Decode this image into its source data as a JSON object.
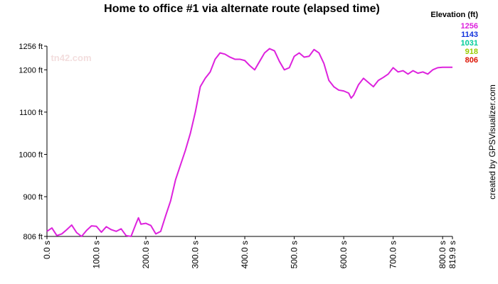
{
  "chart_data": {
    "type": "line",
    "title": "Home to office #1 via alternate route (elapsed time)",
    "watermark": "tn42.com",
    "credit": "created by GPSVisualizer.com",
    "x": [
      0,
      10,
      20,
      30,
      40,
      50,
      60,
      70,
      80,
      90,
      100,
      110,
      120,
      130,
      140,
      150,
      160,
      170,
      180,
      185,
      190,
      200,
      210,
      220,
      230,
      240,
      250,
      260,
      270,
      280,
      290,
      300,
      310,
      320,
      330,
      340,
      350,
      360,
      370,
      380,
      390,
      400,
      410,
      420,
      430,
      440,
      450,
      460,
      470,
      480,
      490,
      500,
      510,
      520,
      530,
      540,
      550,
      560,
      570,
      580,
      590,
      600,
      610,
      615,
      620,
      630,
      640,
      650,
      660,
      670,
      680,
      690,
      700,
      710,
      720,
      730,
      740,
      750,
      760,
      770,
      780,
      790,
      800,
      810,
      819.9
    ],
    "values": [
      818,
      826,
      808,
      812,
      822,
      833,
      815,
      806,
      820,
      831,
      830,
      816,
      829,
      822,
      818,
      824,
      808,
      806,
      836,
      850,
      835,
      837,
      832,
      812,
      818,
      855,
      890,
      940,
      975,
      1010,
      1050,
      1100,
      1160,
      1180,
      1195,
      1225,
      1240,
      1237,
      1230,
      1225,
      1225,
      1222,
      1210,
      1200,
      1220,
      1240,
      1250,
      1245,
      1220,
      1200,
      1205,
      1232,
      1240,
      1230,
      1232,
      1248,
      1240,
      1215,
      1175,
      1160,
      1152,
      1150,
      1145,
      1133,
      1140,
      1165,
      1180,
      1170,
      1160,
      1175,
      1182,
      1190,
      1205,
      1195,
      1198,
      1190,
      1198,
      1192,
      1195,
      1190,
      1200,
      1205,
      1206,
      1206,
      1206
    ],
    "xlim": [
      0,
      819.9
    ],
    "ylim": [
      806,
      1256
    ],
    "xticks": [
      {
        "value": 0,
        "label": "0.0 s"
      },
      {
        "value": 100,
        "label": "100.0 s"
      },
      {
        "value": 200,
        "label": "200.0 s"
      },
      {
        "value": 300,
        "label": "300.0 s"
      },
      {
        "value": 400,
        "label": "400.0 s"
      },
      {
        "value": 500,
        "label": "500.0 s"
      },
      {
        "value": 600,
        "label": "600.0 s"
      },
      {
        "value": 700,
        "label": "700.0 s"
      },
      {
        "value": 800,
        "label": "800.0 s"
      },
      {
        "value": 819.9,
        "label": "819.9 s"
      }
    ],
    "yticks": [
      {
        "value": 806,
        "label": "806 ft"
      },
      {
        "value": 900,
        "label": "900 ft"
      },
      {
        "value": 1000,
        "label": "1000 ft"
      },
      {
        "value": 1100,
        "label": "1100 ft"
      },
      {
        "value": 1200,
        "label": "1200 ft"
      },
      {
        "value": 1256,
        "label": "1256 ft"
      }
    ],
    "color_scale": {
      "title": "Elevation (ft)",
      "stops": [
        {
          "value": 1256,
          "color": "#dd22dd"
        },
        {
          "value": 1143,
          "color": "#1133dd"
        },
        {
          "value": 1031,
          "color": "#00cc99"
        },
        {
          "value": 918,
          "color": "#99cc00"
        },
        {
          "value": 806,
          "color": "#dd1100"
        }
      ]
    }
  }
}
